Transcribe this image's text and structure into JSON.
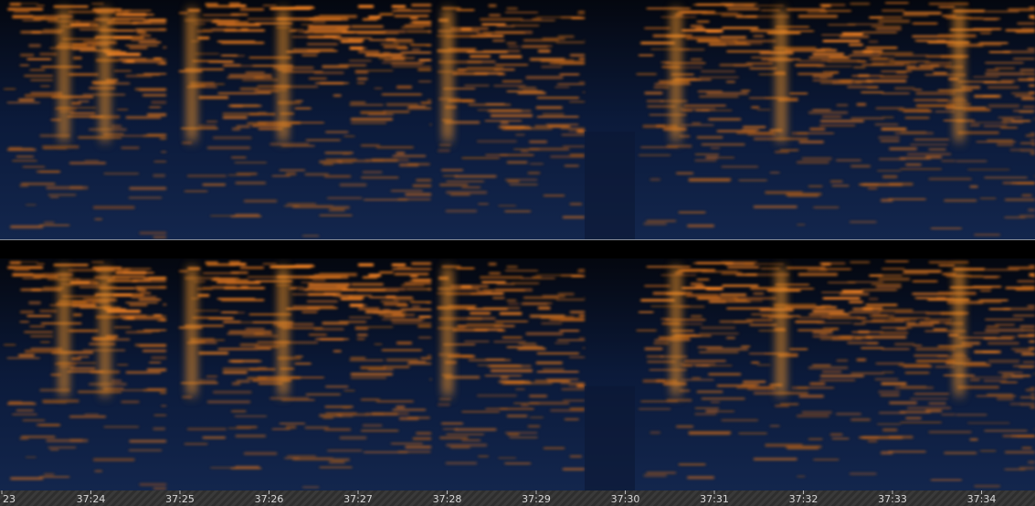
{
  "timeline": {
    "labels": [
      "23",
      "37:24",
      "37:25",
      "37:26",
      "37:27",
      "37:28",
      "37:29",
      "37:30",
      "37:31",
      "37:32",
      "37:33",
      "37:34"
    ]
  }
}
